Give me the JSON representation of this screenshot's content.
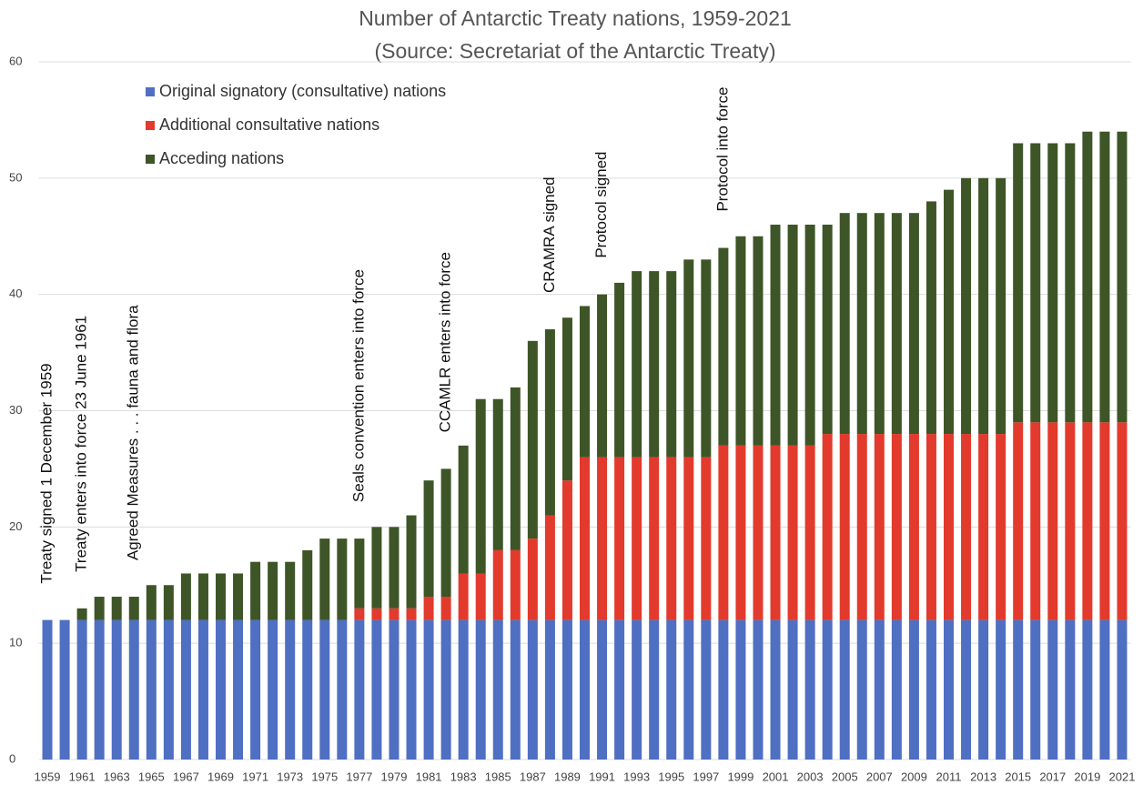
{
  "chart_data": {
    "type": "stacked_bar",
    "title": "Number of Antarctic Treaty nations, 1959-2021",
    "subtitle": "(Source: Secretariat of the Antarctic Treaty)",
    "categories": [
      "1959",
      null,
      "1961",
      null,
      "1963",
      null,
      "1965",
      null,
      "1967",
      null,
      "1969",
      null,
      "1971",
      null,
      "1973",
      null,
      "1975",
      null,
      "1977",
      null,
      "1979",
      null,
      "1981",
      null,
      "1983",
      null,
      "1985",
      null,
      "1987",
      null,
      "1989",
      null,
      "1991",
      null,
      "1993",
      null,
      "1995",
      null,
      "1997",
      null,
      "1999",
      null,
      "2001",
      null,
      "2003",
      null,
      "2005",
      null,
      "2007",
      null,
      "2009",
      null,
      "2011",
      null,
      "2013",
      null,
      "2015",
      null,
      "2017",
      null,
      "2019",
      null,
      "2021"
    ],
    "series": [
      {
        "name": "Original signatory (consultative) nations",
        "color": "#4f6fc2",
        "values": [
          12,
          12,
          12,
          12,
          12,
          12,
          12,
          12,
          12,
          12,
          12,
          12,
          12,
          12,
          12,
          12,
          12,
          12,
          12,
          12,
          12,
          12,
          12,
          12,
          12,
          12,
          12,
          12,
          12,
          12,
          12,
          12,
          12,
          12,
          12,
          12,
          12,
          12,
          12,
          12,
          12,
          12,
          12,
          12,
          12,
          12,
          12,
          12,
          12,
          12,
          12,
          12,
          12,
          12,
          12,
          12,
          12,
          12,
          12,
          12,
          12,
          12,
          12
        ]
      },
      {
        "name": "Additional consultative nations",
        "color": "#e23a2c",
        "values": [
          0,
          0,
          0,
          0,
          0,
          0,
          0,
          0,
          0,
          0,
          0,
          0,
          0,
          0,
          0,
          0,
          0,
          0,
          1,
          1,
          1,
          1,
          2,
          2,
          4,
          4,
          6,
          6,
          7,
          9,
          12,
          14,
          14,
          14,
          14,
          14,
          14,
          14,
          14,
          15,
          15,
          15,
          15,
          15,
          15,
          16,
          16,
          16,
          16,
          16,
          16,
          16,
          16,
          16,
          16,
          16,
          17,
          17,
          17,
          17,
          17,
          17,
          17
        ]
      },
      {
        "name": "Acceding nations",
        "color": "#3e5527",
        "values": [
          0,
          0,
          1,
          2,
          2,
          2,
          3,
          3,
          4,
          4,
          4,
          4,
          5,
          5,
          5,
          6,
          7,
          7,
          6,
          7,
          7,
          8,
          10,
          11,
          11,
          15,
          13,
          14,
          17,
          16,
          14,
          13,
          14,
          15,
          16,
          16,
          16,
          17,
          17,
          17,
          18,
          18,
          19,
          19,
          19,
          18,
          19,
          19,
          19,
          19,
          19,
          20,
          21,
          22,
          22,
          22,
          24,
          24,
          24,
          24,
          25,
          25,
          25
        ]
      }
    ],
    "annotations": [
      "Treaty signed 1 December 1959",
      "Treaty enters into force 23 June 1961",
      "Agreed Measures . . . fauna and flora",
      "Seals convention enters into force",
      "CCAMLR enters into force",
      "CRAMRA signed",
      "Protocol signed",
      "Protocol into force"
    ],
    "ylim": [
      0,
      60
    ],
    "yticks": [
      0,
      10,
      20,
      30,
      40,
      50,
      60
    ],
    "grid": true,
    "legend": "top-left"
  }
}
